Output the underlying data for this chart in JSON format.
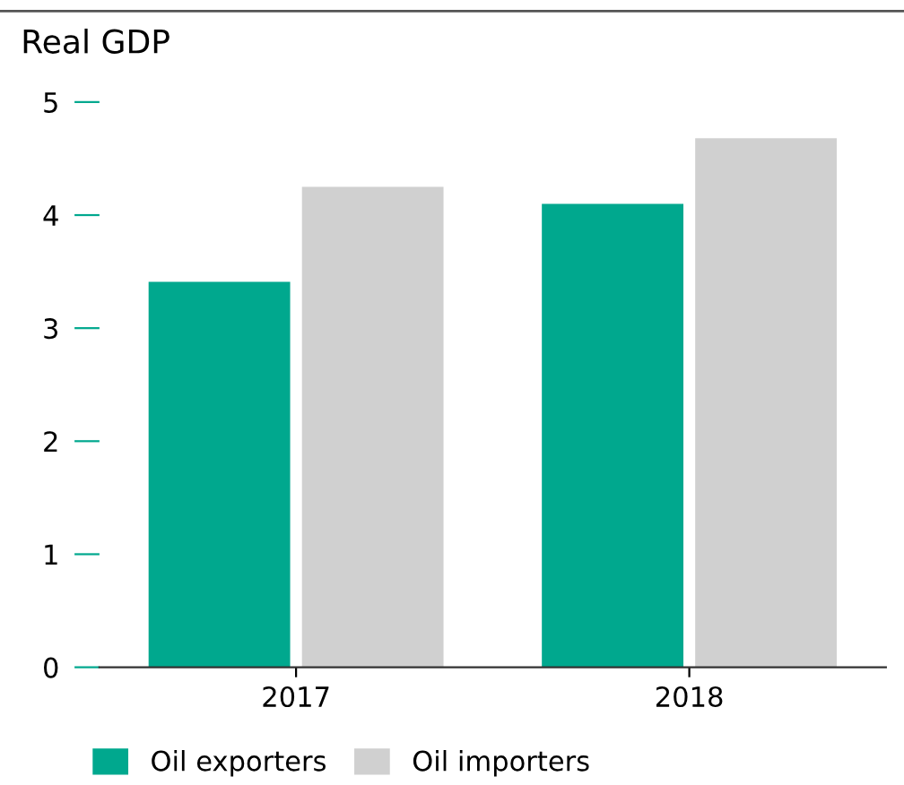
{
  "chart_data": {
    "type": "bar",
    "title": "Real GDP",
    "categories": [
      "2017",
      "2018"
    ],
    "series": [
      {
        "name": "Oil exporters",
        "color": "#00a88e",
        "values": [
          3.41,
          4.1
        ]
      },
      {
        "name": "Oil importers",
        "color": "#d0d0d0",
        "values": [
          4.25,
          4.68
        ]
      }
    ],
    "ylim": [
      0,
      5
    ],
    "yticks": [
      0,
      1,
      2,
      3,
      4,
      5
    ],
    "grid": false,
    "legend": "bottom"
  }
}
